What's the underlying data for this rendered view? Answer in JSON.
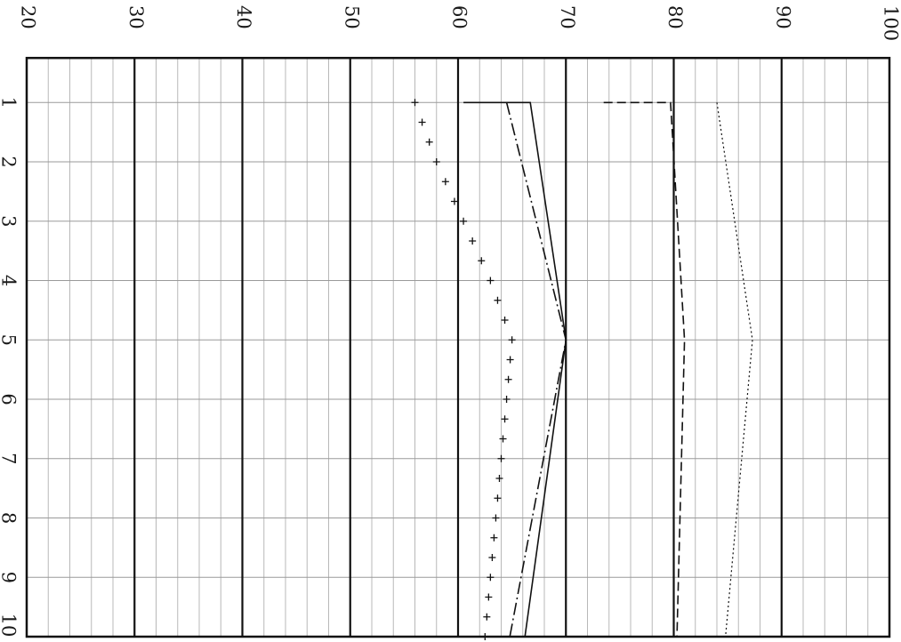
{
  "chart_data": {
    "type": "line",
    "orientation": "rotated-90-clockwise",
    "x_ticks": [
      "1",
      "2",
      "3",
      "4",
      "5",
      "6",
      "7",
      "8",
      "9",
      "10"
    ],
    "y_ticks": [
      "20",
      "30",
      "40",
      "50",
      "60",
      "70",
      "80",
      "90",
      "100"
    ],
    "xlim": [
      0.25,
      10
    ],
    "ylim": [
      20,
      100
    ],
    "grid": true,
    "series": [
      {
        "style": "solid",
        "points": [
          [
            1,
            60.5
          ],
          [
            1,
            66.7
          ],
          [
            5,
            70
          ],
          [
            10,
            66.2
          ]
        ]
      },
      {
        "style": "dash-dot",
        "points": [
          [
            1,
            64.5
          ],
          [
            5,
            70
          ],
          [
            10,
            64.8
          ]
        ]
      },
      {
        "style": "dashed",
        "points": [
          [
            1,
            73.5
          ],
          [
            1,
            79.7
          ],
          [
            5,
            81
          ],
          [
            10,
            80.3
          ]
        ]
      },
      {
        "style": "dotted",
        "points": [
          [
            1,
            84
          ],
          [
            5,
            87.3
          ],
          [
            10,
            84.8
          ]
        ]
      },
      {
        "style": "crosses",
        "points": [
          [
            1,
            56
          ],
          [
            2,
            58
          ],
          [
            3,
            60.5
          ],
          [
            4,
            63
          ],
          [
            5,
            65
          ],
          [
            6,
            64.5
          ],
          [
            7,
            64
          ],
          [
            8,
            63.5
          ],
          [
            9,
            63
          ],
          [
            10,
            62.5
          ]
        ]
      }
    ]
  }
}
